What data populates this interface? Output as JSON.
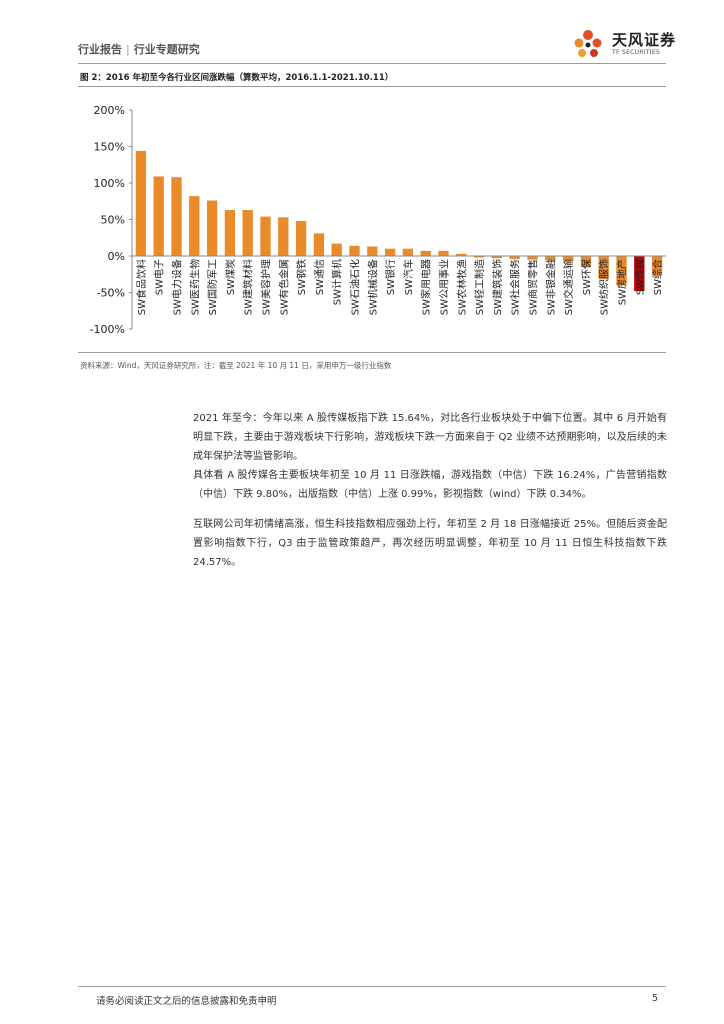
{
  "header": {
    "category": "行业报告",
    "subcategory": "行业专题研究",
    "brand_cn": "天风证券",
    "brand_en": "TF SECURITIES"
  },
  "figure": {
    "title": "图 2：2016 年初至今各行业区间涨跌幅（算数平均，2016.1.1-2021.10.11）",
    "source": "资料来源：Wind，天风证券研究所，注：截至 2021 年 10 月 11 日，采用申万一级行业指数"
  },
  "chart_data": {
    "type": "bar",
    "title": "",
    "xlabel": "",
    "ylabel": "",
    "ylim": [
      -100,
      200
    ],
    "yticks": [
      "200%",
      "150%",
      "100%",
      "50%",
      "0%",
      "-50%",
      "-100%"
    ],
    "grid": false,
    "legend": "none",
    "categories": [
      "SW食品饮料",
      "SW电子",
      "SW电力设备",
      "SW医药生物",
      "SW国防军工",
      "SW煤炭",
      "SW建筑材料",
      "SW美容护理",
      "SW有色金属",
      "SW钢铁",
      "SW通信",
      "SW计算机",
      "SW石油石化",
      "SW机械设备",
      "SW银行",
      "SW汽车",
      "SW家用电器",
      "SW公用事业",
      "SW农林牧渔",
      "SW轻工制造",
      "SW建筑装饰",
      "SW社会服务",
      "SW商贸零售",
      "SW非银金融",
      "SW交通运输",
      "SW环保",
      "SW纺织服饰",
      "SW房地产",
      "SW传媒",
      "SW综合"
    ],
    "values": [
      144,
      109,
      108,
      82,
      76,
      63,
      63,
      54,
      53,
      48,
      31,
      17,
      14,
      13,
      10,
      10,
      7,
      7,
      3,
      -2,
      -3,
      -4,
      -5,
      -6,
      -7,
      -15,
      -32,
      -40,
      -48,
      -27
    ],
    "colors": {
      "bar": "#E98B2A",
      "highlight": "#C00000"
    },
    "highlight_index": 28
  },
  "body": {
    "p1_label": "2021 年至今：",
    "p1_text": "今年以来 A 股传媒板指下跌 15.64%，对比各行业板块处于中偏下位置。其中 6 月开始有明显下跌，主要由于游戏板块下行影响，游戏板块下跌一方面来自于 Q2 业绩不达预期影响，以及后续的未成年保护法等监管影响。",
    "p2": "具体看 A 股传媒各主要板块年初至 10 月 11 日涨跌幅，游戏指数（中信）下跌 16.24%，广告营销指数（中信）下跌 9.80%，出版指数（中信）上涨 0.99%，影视指数（wind）下跌 0.34%。",
    "p3": "互联网公司年初情绪高涨，恒生科技指数相应强劲上行，年初至 2 月 18 日涨幅接近 25%。但随后资金配置影响指数下行，Q3 由于监管政策趋严，再次经历明显调整，年初至 10 月 11 日恒生科技指数下跌 24.57%。"
  },
  "footer": {
    "disclaimer": "请务必阅读正文之后的信息披露和免责申明",
    "page": "5"
  }
}
